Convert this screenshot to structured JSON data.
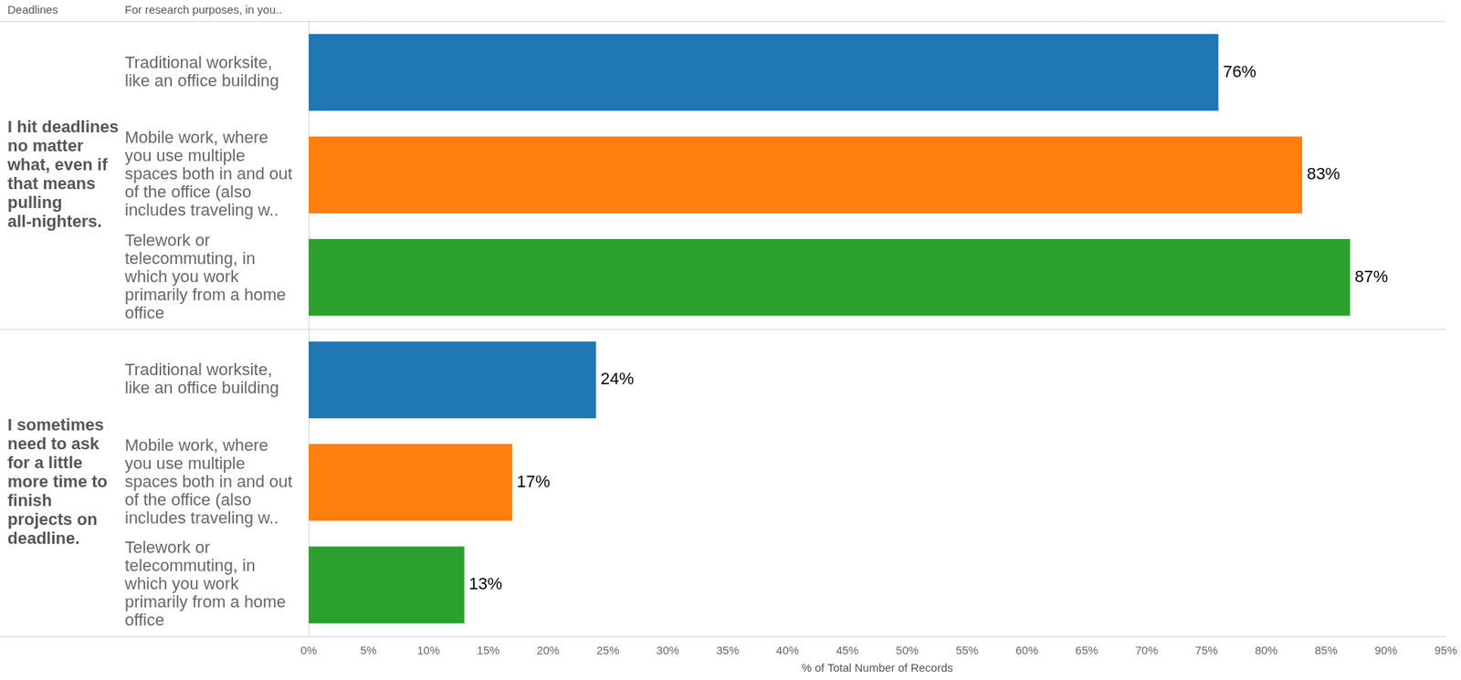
{
  "chart_data": {
    "type": "bar",
    "orientation": "horizontal",
    "headers": [
      "Deadlines",
      "For research purposes, in you.."
    ],
    "x_label": "% of Total Number of Records",
    "groups": [
      {
        "label": "I hit deadlines no matter what, even if that means pulling all-nighters.",
        "categories": [
          "Traditional worksite, like an office building",
          "Mobile work, where you use multiple spaces both in and out of the office (also includes traveling w..",
          "Telework or telecommuting, in which you work primarily from a home office"
        ],
        "values": [
          76,
          83,
          87
        ],
        "value_labels": [
          "76%",
          "83%",
          "87%"
        ],
        "colors": [
          "#1f77b4",
          "#ff7f0e",
          "#2ca02c"
        ]
      },
      {
        "label": "I sometimes need to ask for a little more time to finish projects on deadline.",
        "categories": [
          "Traditional worksite, like an office building",
          "Mobile work, where you use multiple spaces both in and out of the office (also includes traveling w..",
          "Telework or telecommuting, in which you work primarily from a home office"
        ],
        "values": [
          24,
          17,
          13
        ],
        "value_labels": [
          "24%",
          "17%",
          "13%"
        ],
        "colors": [
          "#1f77b4",
          "#ff7f0e",
          "#2ca02c"
        ]
      }
    ],
    "xlim": [
      0,
      95
    ],
    "xticks": [
      {
        "value": 0,
        "label": "0%"
      },
      {
        "value": 5,
        "label": "5%"
      },
      {
        "value": 10,
        "label": "10%"
      },
      {
        "value": 15,
        "label": "15%"
      },
      {
        "value": 20,
        "label": "20%"
      },
      {
        "value": 25,
        "label": "25%"
      },
      {
        "value": 30,
        "label": "30%"
      },
      {
        "value": 35,
        "label": "35%"
      },
      {
        "value": 40,
        "label": "40%"
      },
      {
        "value": 45,
        "label": "45%"
      },
      {
        "value": 50,
        "label": "50%"
      },
      {
        "value": 55,
        "label": "55%"
      },
      {
        "value": 60,
        "label": "60%"
      },
      {
        "value": 65,
        "label": "65%"
      },
      {
        "value": 70,
        "label": "70%"
      },
      {
        "value": 75,
        "label": "75%"
      },
      {
        "value": 80,
        "label": "80%"
      },
      {
        "value": 85,
        "label": "85%"
      },
      {
        "value": 90,
        "label": "90%"
      },
      {
        "value": 95,
        "label": "95%"
      }
    ],
    "grid": false,
    "data_labels": true
  }
}
